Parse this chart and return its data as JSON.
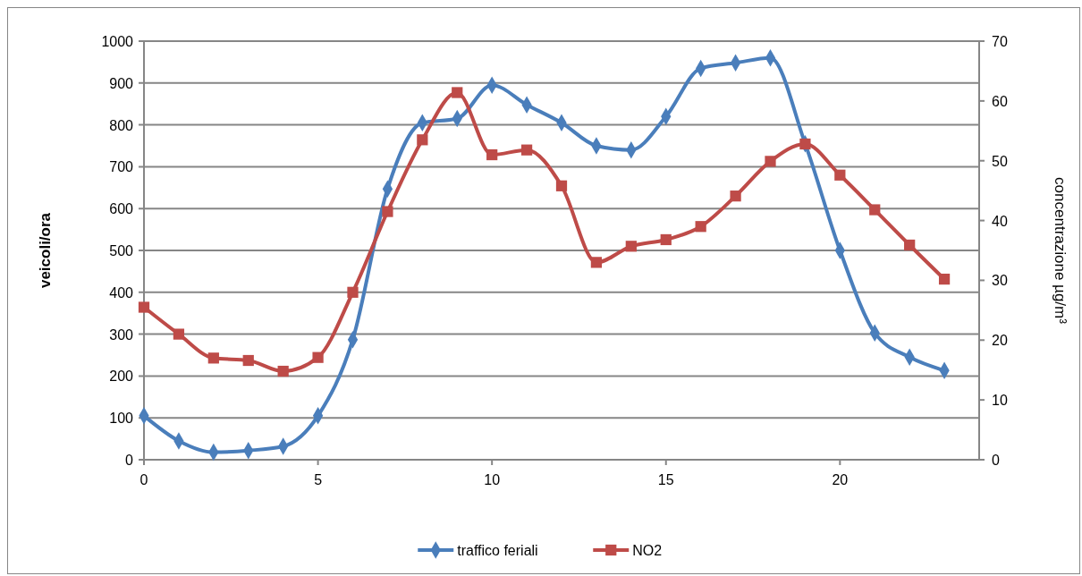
{
  "chart_data": {
    "type": "line",
    "xlabel": null,
    "ylabel": "veicoli/ora",
    "y2label": "concentrazione µg/m³",
    "x": [
      0,
      1,
      2,
      3,
      4,
      5,
      6,
      7,
      8,
      9,
      10,
      11,
      12,
      13,
      14,
      15,
      16,
      17,
      18,
      19,
      20,
      21,
      22,
      23
    ],
    "xlim": [
      0,
      24
    ],
    "xticks": [
      0,
      5,
      10,
      15,
      20
    ],
    "ylim": [
      0,
      1000
    ],
    "yticks": [
      0,
      100,
      200,
      300,
      400,
      500,
      600,
      700,
      800,
      900,
      1000
    ],
    "y2lim": [
      0,
      70
    ],
    "y2ticks": [
      0,
      10,
      20,
      30,
      40,
      50,
      60,
      70
    ],
    "grid": "y",
    "legend": "bottom",
    "series": [
      {
        "name": "traffico feriali",
        "color": "#4a7ebb",
        "marker": "diamond",
        "values": [
          105,
          45,
          18,
          22,
          32,
          105,
          287,
          647,
          805,
          815,
          895,
          848,
          805,
          750,
          740,
          820,
          935,
          948,
          960,
          755,
          500,
          303,
          245,
          213
        ]
      },
      {
        "name": "NO2",
        "color": "#be4b48",
        "marker": "square",
        "axis": "y2",
        "values": [
          25.5,
          21,
          17,
          16.6,
          14.8,
          17.1,
          28,
          41.5,
          53.5,
          61.4,
          51,
          51.8,
          45.8,
          33,
          35.7,
          36.8,
          39,
          44.1,
          49.9,
          52.8,
          47.6,
          41.8,
          35.9,
          30.2
        ]
      }
    ]
  }
}
